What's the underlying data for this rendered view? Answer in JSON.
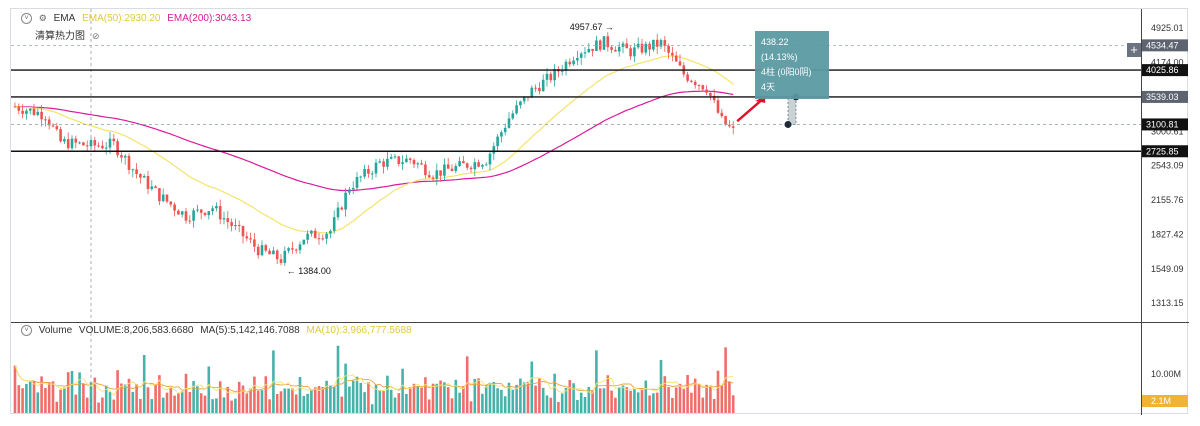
{
  "legend": {
    "symbol": "EMA",
    "ema50_label": "EMA(50):2930.20",
    "ema200_label": "EMA(200):3043.13",
    "heatmap_label": "清算热力图",
    "volume_label": "Volume",
    "volume_value": "VOLUME:8,206,583.6680",
    "ma5_label": "MA(5):5,142,146.7088",
    "ma10_label": "MA(10):3,966,777.5688"
  },
  "colors": {
    "up": "#26a69a",
    "down": "#ef5350",
    "ema50": "#f5e36b",
    "ema200": "#d81b9e",
    "ma5": "#f5e36b",
    "ma10": "#e8a33d",
    "arrow": "#e0102b",
    "tooltip_bg": "#5a9aa3",
    "vol_badge": "#f2b233"
  },
  "annotations": {
    "high_label": "4957.67",
    "low_label": "1384.00",
    "tooltip_line1": "438.22 (14.13%)",
    "tooltip_line2": "4柱 (0阳0阴)",
    "tooltip_line3": "4天",
    "plus_icon": "plus-icon",
    "heatmap_icon": "eye-slash-icon",
    "settings_icon": "chevron-down-icon"
  },
  "chart_data": {
    "type": "candlestick",
    "x_count": 190,
    "price_axis": {
      "scale": "log",
      "range": [
        1200,
        5400
      ],
      "ticks": [
        4925.01,
        4174.0,
        3000.61,
        2543.09,
        2155.76,
        1827.42,
        1549.09,
        1313.15
      ]
    },
    "price_badges": [
      {
        "value": "4534.47",
        "style": "gray"
      },
      {
        "value": "4025.86",
        "style": "dark"
      },
      {
        "value": "3539.03",
        "style": "gray"
      },
      {
        "value": "3100.81",
        "style": "dark"
      },
      {
        "value": "2725.85",
        "style": "dark"
      }
    ],
    "horizontal_levels": [
      4025.86,
      3539.03,
      2725.85
    ],
    "dashed_levels": [
      4534.47,
      3100.81
    ],
    "anchors": [
      {
        "i": 0,
        "price": 3380
      },
      {
        "i": 8,
        "price": 3250
      },
      {
        "i": 12,
        "price": 2850
      },
      {
        "i": 20,
        "price": 2800
      },
      {
        "i": 26,
        "price": 2820
      },
      {
        "i": 32,
        "price": 2450
      },
      {
        "i": 38,
        "price": 2200
      },
      {
        "i": 45,
        "price": 2000
      },
      {
        "i": 52,
        "price": 2080
      },
      {
        "i": 58,
        "price": 1880
      },
      {
        "i": 64,
        "price": 1700
      },
      {
        "i": 70,
        "price": 1620
      },
      {
        "i": 76,
        "price": 1800
      },
      {
        "i": 83,
        "price": 1860
      },
      {
        "i": 88,
        "price": 2300
      },
      {
        "i": 96,
        "price": 2580
      },
      {
        "i": 104,
        "price": 2620
      },
      {
        "i": 110,
        "price": 2450
      },
      {
        "i": 116,
        "price": 2520
      },
      {
        "i": 124,
        "price": 2620
      },
      {
        "i": 130,
        "price": 3200
      },
      {
        "i": 136,
        "price": 3650
      },
      {
        "i": 142,
        "price": 3950
      },
      {
        "i": 148,
        "price": 4400
      },
      {
        "i": 155,
        "price": 4600
      },
      {
        "i": 162,
        "price": 4400
      },
      {
        "i": 170,
        "price": 4580
      },
      {
        "i": 176,
        "price": 3950
      },
      {
        "i": 182,
        "price": 3700
      },
      {
        "i": 186,
        "price": 3150
      },
      {
        "i": 190,
        "price": 2950
      }
    ],
    "volume_axis": {
      "ticks": [
        "10.00M"
      ],
      "badge": "2.1M"
    }
  }
}
